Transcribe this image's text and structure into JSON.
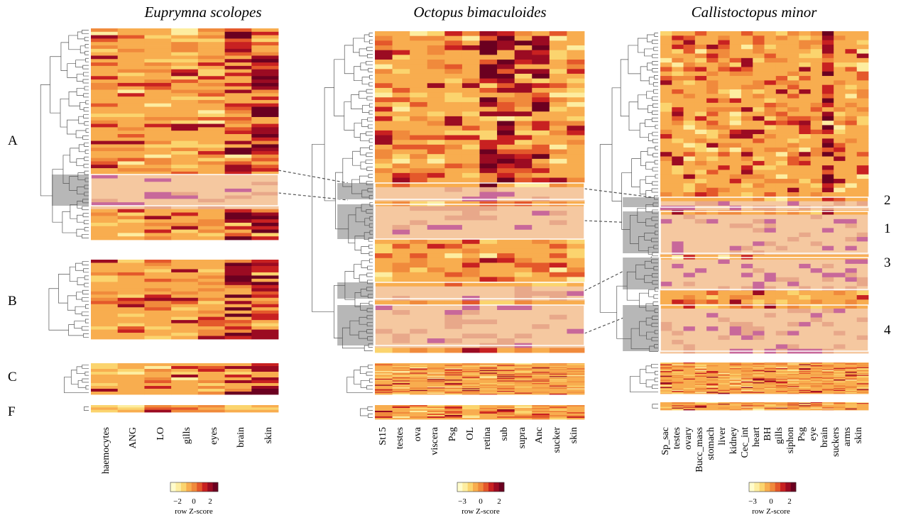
{
  "chart_data": [
    {
      "type": "heatmap",
      "title": "Euprymna scolopes",
      "columns": [
        "haemocytes",
        "ANG",
        "LO",
        "gills",
        "eyes",
        "brain",
        "skin"
      ],
      "groups": [
        {
          "label": "A",
          "rows": 62,
          "subclusters": [
            {
              "label": "",
              "rows": 12
            }
          ]
        },
        {
          "label": "B",
          "rows": 25
        },
        {
          "label": "C",
          "rows": 11
        },
        {
          "label": "F",
          "rows": 3
        }
      ],
      "legend": {
        "title": "row Z-score",
        "ticks": [
          "−2",
          "0",
          "2"
        ]
      }
    },
    {
      "type": "heatmap",
      "title": "Octopus bimaculoides",
      "columns": [
        "St15",
        "testes",
        "ova",
        "viscera",
        "Psg",
        "OL",
        "retina",
        "sub",
        "supra",
        "Anc",
        "sucker",
        "skin"
      ],
      "groups": [
        {
          "label": "A",
          "rows": 68,
          "subclusters": [
            {
              "label": "2",
              "rows": 7
            },
            {
              "label": "1",
              "rows": 13
            }
          ]
        },
        {
          "label": "B",
          "rows": 36,
          "subclusters": [
            {
              "label": "3",
              "rows": 8
            },
            {
              "label": "4",
              "rows": 18
            }
          ]
        },
        {
          "label": "C",
          "rows": 10
        },
        {
          "label": "F",
          "rows": 4
        }
      ],
      "legend": {
        "title": "row Z-score",
        "ticks": [
          "−3",
          "0",
          "2"
        ]
      }
    },
    {
      "type": "heatmap",
      "title": "Callistoctopus minor",
      "columns": [
        "Sp_sac",
        "testes",
        "ovary",
        "Bucc_mass",
        "stomach",
        "liver",
        "kidney",
        "Cec_int",
        "heart",
        "BH",
        "gills",
        "siphon",
        "Psg",
        "eye",
        "brain",
        "suckers",
        "arms",
        "skin"
      ],
      "groups": [
        {
          "label": "A",
          "rows": 72,
          "subclusters": [
            {
              "label": "2",
              "rows": 4
            },
            {
              "label": "1",
              "rows": 11
            }
          ]
        },
        {
          "label": "B",
          "rows": 33,
          "subclusters": [
            {
              "label": "3",
              "rows": 8
            },
            {
              "label": "4",
              "rows": 16
            }
          ]
        },
        {
          "label": "C",
          "rows": 10
        },
        {
          "label": "F",
          "rows": 2
        }
      ],
      "legend": {
        "title": "row Z-score",
        "ticks": [
          "−3",
          "0",
          "2"
        ]
      }
    }
  ],
  "row_group_labels": [
    "A",
    "B",
    "C",
    "F"
  ],
  "subcluster_labels": [
    "2",
    "1",
    "3",
    "4"
  ],
  "palette": [
    "#fffccc",
    "#fdeda0",
    "#fbd46e",
    "#f8ad4f",
    "#f08a3c",
    "#e4582b",
    "#c82121",
    "#9b0b22",
    "#6b0020"
  ],
  "highlight_colors": {
    "light": "#f5c8a0",
    "dark": "#c8689a"
  },
  "dendrogram_highlight": "#b7b7b7"
}
